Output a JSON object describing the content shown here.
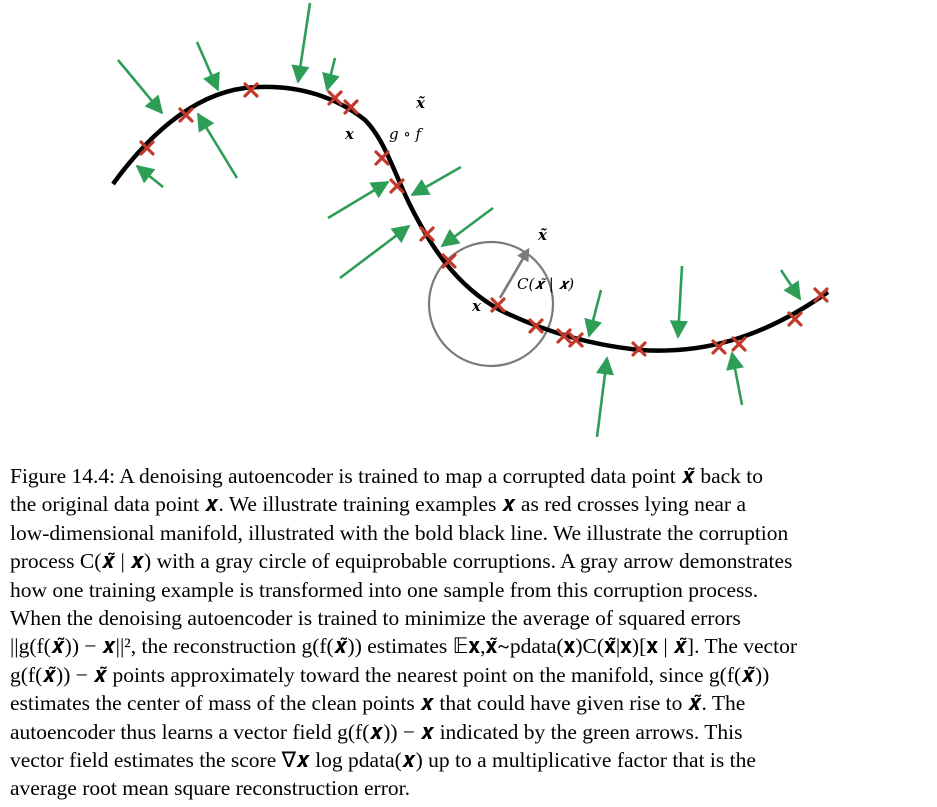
{
  "figure": {
    "labels": {
      "x_near_gof": "𝒙",
      "xtilde_top": "𝒙̃",
      "gof": "g ∘ f",
      "xtilde_circle": "𝒙̃",
      "corruption": "C(𝒙̃ | 𝒙)",
      "x_circle": "𝒙"
    },
    "colors": {
      "manifold": "#000000",
      "crosses": "#c1392b",
      "vector_field": "#2e9e57",
      "corruption_circle": "#7a7a7a",
      "corruption_arrow": "#7a7a7a"
    }
  },
  "caption": {
    "lines": [
      "Figure 14.4: A denoising autoencoder is trained to map a corrupted data point 𝒙̃ back to",
      "the original data point 𝒙. We illustrate training examples 𝒙 as red crosses lying near a",
      "low-dimensional manifold, illustrated with the bold black line. We illustrate the corruption",
      "process C(𝒙̃ | 𝒙) with a gray circle of equiprobable corruptions. A gray arrow demonstrates",
      "how one training example is transformed into one sample from this corruption process.",
      "When the denoising autoencoder is trained to minimize the average of squared errors",
      "||g(f(𝒙̃)) − 𝒙||², the reconstruction g(f(𝒙̃)) estimates 𝔼𝐱,𝐱̃∼pdata(𝐱)C(𝐱̃|𝐱)[𝐱 | 𝒙̃]. The vector",
      "g(f(𝒙̃)) − 𝒙̃ points approximately toward the nearest point on the manifold, since g(f(𝒙̃))",
      "estimates the center of mass of the clean points 𝒙 that could have given rise to 𝒙̃. The",
      "autoencoder thus learns a vector field g(f(𝒙)) − 𝒙 indicated by the green arrows. This",
      "vector field estimates the score ∇𝒙 log pdata(𝒙) up to a multiplicative factor that is the",
      "average root mean square reconstruction error."
    ]
  }
}
